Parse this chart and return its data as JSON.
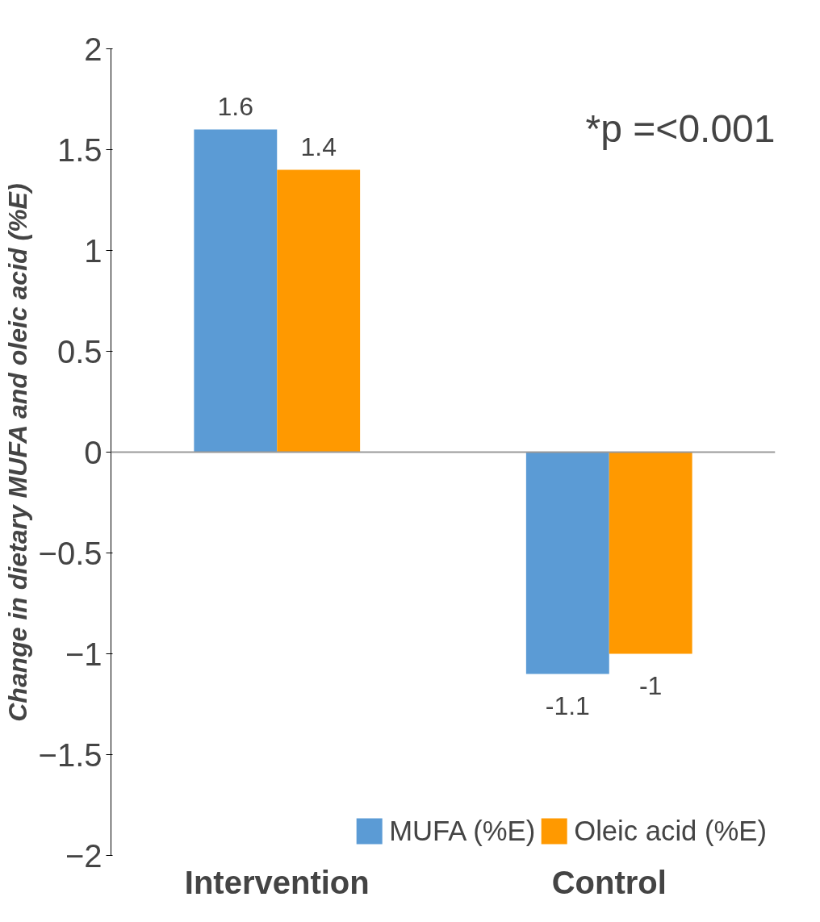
{
  "chart_data": {
    "type": "bar",
    "ylabel": "Change in dietary MUFA and oleic acid (%E)",
    "categories": [
      "Intervention",
      "Control"
    ],
    "series": [
      {
        "name": "MUFA (%E)",
        "color": "#5b9bd5",
        "values": [
          1.6,
          -1.1
        ]
      },
      {
        "name": "Oleic acid (%E)",
        "color": "#ff9900",
        "values": [
          1.4,
          -1
        ]
      }
    ],
    "ylim": [
      -2,
      2
    ],
    "yticks": [
      -2,
      -1.5,
      -1,
      -0.5,
      0,
      0.5,
      1,
      1.5,
      2
    ],
    "ref_lines": [
      {
        "axis": "y",
        "value": 0,
        "color": "#999999"
      }
    ],
    "data_labels": true,
    "legend": "bottom",
    "grid": false,
    "annotations": [
      "*p =<0.001"
    ]
  }
}
